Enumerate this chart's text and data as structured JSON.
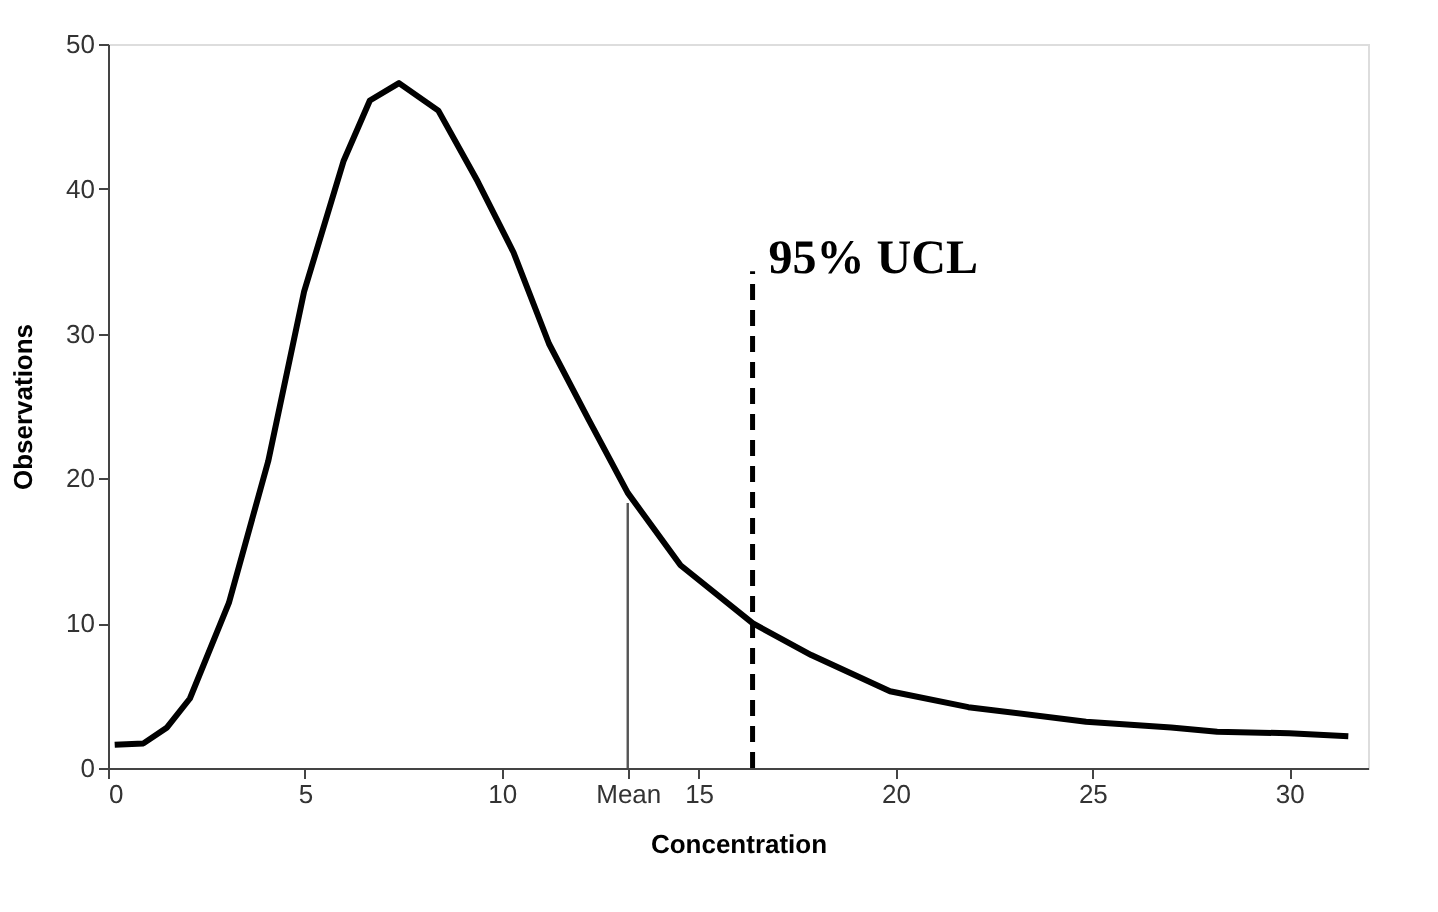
{
  "chart_data": {
    "type": "line",
    "xlabel": "Concentration",
    "ylabel": "Observations",
    "xlim": [
      0,
      32
    ],
    "ylim": [
      0,
      50
    ],
    "xticks": [
      0,
      5,
      10,
      {
        "value": 13.2,
        "label": "Mean"
      },
      15,
      20,
      25,
      30
    ],
    "yticks": [
      0,
      10,
      20,
      30,
      40,
      50
    ],
    "grid": false,
    "marker": "none",
    "series": [
      {
        "color": "#000000",
        "line_style": "solid",
        "x": [
          0.17,
          0.9,
          1.5,
          2.08,
          3.07,
          4.07,
          4.98,
          5.98,
          6.65,
          7.39,
          8.39,
          9.39,
          10.3,
          11.2,
          12.2,
          13.2,
          14.54,
          16.37,
          17.86,
          19.86,
          21.85,
          24.84,
          27.0,
          28.17,
          30.0,
          31.5
        ],
        "values": [
          1.6,
          1.7,
          2.8,
          4.8,
          11.4,
          21.2,
          32.9,
          41.9,
          46.1,
          47.3,
          45.4,
          40.5,
          35.6,
          29.3,
          24.1,
          19.0,
          14.0,
          10.0,
          7.8,
          5.3,
          4.2,
          3.2,
          2.8,
          2.5,
          2.4,
          2.2
        ]
      },
      {
        "color": "#555555",
        "line_style": "solid",
        "x": [
          13.2,
          13.2
        ],
        "values": [
          0,
          18.3
        ]
      },
      {
        "color": "#000000",
        "line_style": "dashed",
        "x": [
          16.37,
          16.37
        ],
        "values": [
          0,
          34.3
        ]
      }
    ],
    "annotations": [
      {
        "text": "95% UCL",
        "x": 16.37,
        "y": 34.3
      }
    ]
  }
}
